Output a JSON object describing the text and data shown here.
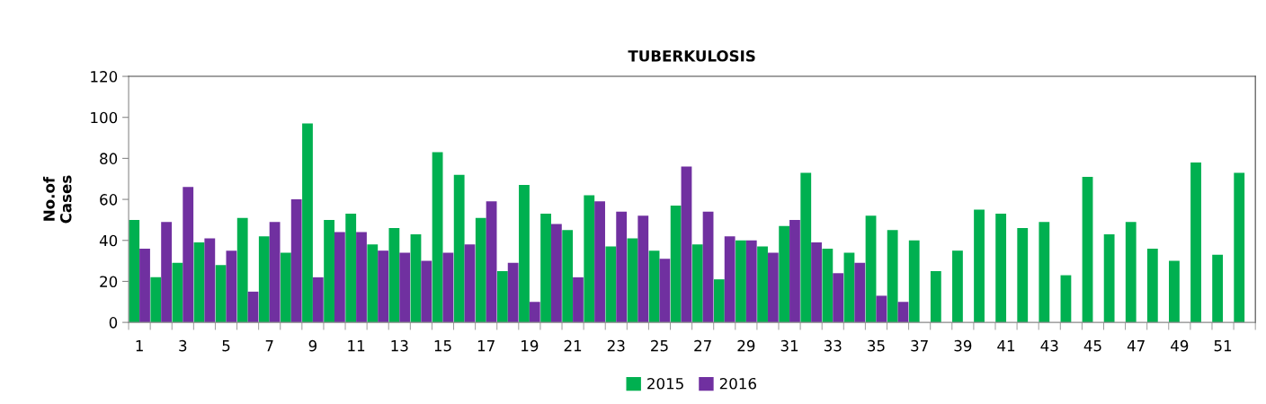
{
  "chart_data": {
    "type": "bar",
    "title": "TUBERKULOSIS",
    "ylabel": "No.of\nCases",
    "categories": [
      "1",
      null,
      "3",
      null,
      "5",
      null,
      "7",
      null,
      "9",
      null,
      "11",
      null,
      "13",
      null,
      "15",
      null,
      "17",
      null,
      "19",
      null,
      "21",
      null,
      "23",
      null,
      "25",
      null,
      "27",
      null,
      "29",
      null,
      "31",
      null,
      "33",
      null,
      "35",
      null,
      "37",
      null,
      "39",
      null,
      "41",
      null,
      "43",
      null,
      "45",
      null,
      "47",
      null,
      "49",
      null,
      "51",
      null
    ],
    "series": [
      {
        "name": "2015",
        "color": "#00b050",
        "values": [
          50,
          22,
          29,
          39,
          28,
          51,
          42,
          34,
          97,
          50,
          53,
          38,
          46,
          43,
          83,
          72,
          51,
          25,
          67,
          53,
          45,
          62,
          37,
          41,
          35,
          57,
          38,
          21,
          40,
          37,
          47,
          73,
          36,
          34,
          52,
          45,
          40,
          25,
          35,
          55,
          53,
          46,
          49,
          23,
          71,
          43,
          49,
          36,
          30,
          78,
          33,
          73
        ]
      },
      {
        "name": "2016",
        "color": "#7030a0",
        "values": [
          36,
          49,
          66,
          41,
          35,
          15,
          49,
          60,
          22,
          44,
          44,
          35,
          34,
          30,
          34,
          38,
          59,
          29,
          10,
          48,
          22,
          59,
          54,
          52,
          31,
          76,
          54,
          42,
          40,
          34,
          50,
          39,
          24,
          29,
          13,
          10,
          null,
          null,
          null,
          null,
          null,
          null,
          null,
          null,
          null,
          null,
          null,
          null,
          null,
          null,
          null,
          null
        ]
      }
    ],
    "ylim": [
      0,
      120
    ],
    "yticks": [
      0,
      20,
      40,
      60,
      80,
      100,
      120
    ],
    "grid": false,
    "legend": "bottom"
  }
}
